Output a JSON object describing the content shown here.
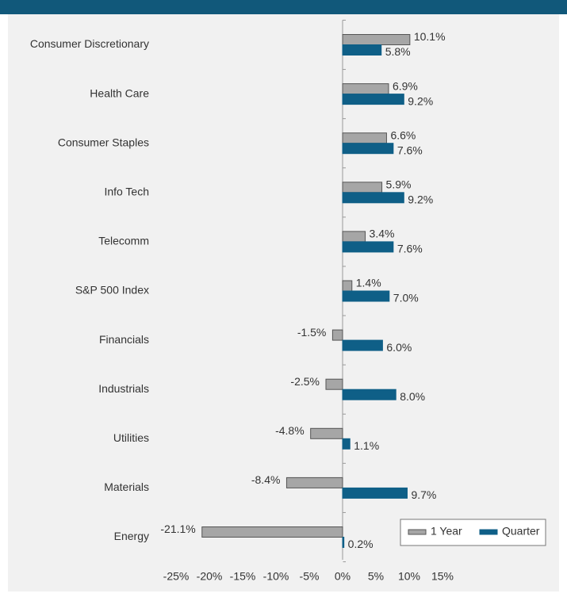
{
  "chart_data": {
    "type": "hbar",
    "categories": [
      "Consumer Discretionary",
      "Health Care",
      "Consumer Staples",
      "Info Tech",
      "Telecomm",
      "S&P 500 Index",
      "Financials",
      "Industrials",
      "Utilities",
      "Materials",
      "Energy"
    ],
    "series": [
      {
        "name": "1 Year",
        "color": "#a6a6a6",
        "values": [
          10.1,
          6.9,
          6.6,
          5.9,
          3.4,
          1.4,
          -1.5,
          -2.5,
          -4.8,
          -8.4,
          -21.1
        ],
        "value_labels": [
          "10.1%",
          "6.9%",
          "6.6%",
          "5.9%",
          "3.4%",
          "1.4%",
          "-1.5%",
          "-2.5%",
          "-4.8%",
          "-8.4%",
          "-21.1%"
        ]
      },
      {
        "name": "Quarter",
        "color": "#0f5f87",
        "values": [
          5.8,
          9.2,
          7.6,
          9.2,
          7.6,
          7.0,
          6.0,
          8.0,
          1.1,
          9.7,
          0.2
        ],
        "value_labels": [
          "5.8%",
          "9.2%",
          "7.6%",
          "9.2%",
          "7.6%",
          "7.0%",
          "6.0%",
          "8.0%",
          "1.1%",
          "9.7%",
          "0.2%"
        ]
      }
    ],
    "xlim": [
      -25,
      15
    ],
    "xticks": [
      {
        "value": -25,
        "label": "-25%"
      },
      {
        "value": -20,
        "label": "-20%"
      },
      {
        "value": -15,
        "label": "-15%"
      },
      {
        "value": -10,
        "label": "-10%"
      },
      {
        "value": -5,
        "label": "-5%"
      },
      {
        "value": 0,
        "label": "0%"
      },
      {
        "value": 5,
        "label": "5%"
      },
      {
        "value": 10,
        "label": "10%"
      },
      {
        "value": 15,
        "label": "15%"
      }
    ],
    "legend": "lower right"
  }
}
